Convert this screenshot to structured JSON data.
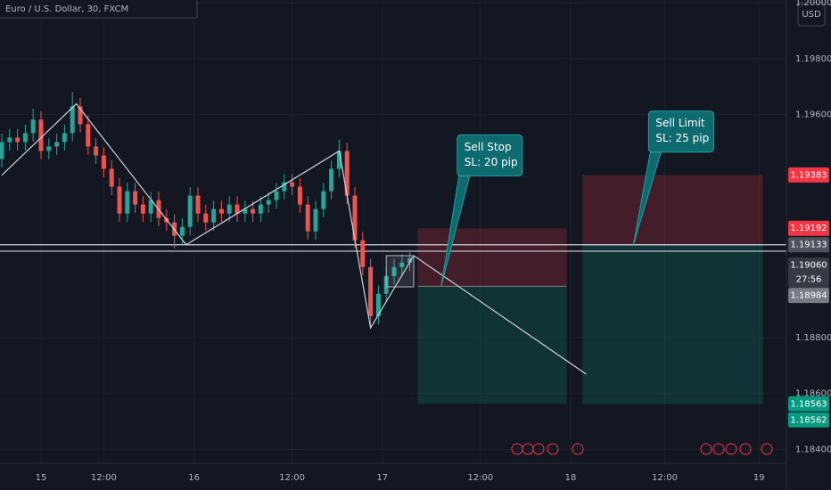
{
  "chart_data": {
    "type": "candlestick",
    "title": "Euro / U.S. Dollar, 30, FXCM",
    "currency": "USD",
    "up_color": "#26a69a",
    "down_color": "#ef5350",
    "grid": true,
    "x": [
      0,
      2,
      4,
      6,
      8,
      10,
      12,
      14,
      16,
      18,
      20,
      22,
      24,
      26,
      28,
      30,
      32,
      34,
      36,
      38,
      40,
      42,
      44,
      46,
      48,
      50,
      52,
      54,
      56,
      58,
      60,
      62,
      64,
      66,
      68,
      70,
      72,
      74,
      76,
      78,
      80,
      82,
      84,
      86,
      88,
      90,
      92,
      94,
      96,
      98,
      100,
      102,
      104
    ],
    "open": [
      1.1944,
      1.19501,
      1.19517,
      1.19501,
      1.19533,
      1.19581,
      1.19469,
      1.19485,
      1.19501,
      1.19533,
      1.19629,
      1.19565,
      1.19485,
      1.19453,
      1.19405,
      1.19341,
      1.19245,
      1.19325,
      1.19277,
      1.19245,
      1.19293,
      1.19229,
      1.19213,
      1.19165,
      1.19197,
      1.19309,
      1.19245,
      1.19213,
      1.19261,
      1.19245,
      1.19277,
      1.19245,
      1.19261,
      1.19245,
      1.19277,
      1.19293,
      1.19325,
      1.19357,
      1.19341,
      1.19277,
      1.19181,
      1.19261,
      1.19325,
      1.19405,
      1.19469,
      1.19309,
      1.19149,
      1.19053,
      1.18877,
      1.18957,
      1.19021,
      1.19053,
      1.19069
    ],
    "high": [
      1.19531,
      1.19547,
      1.19547,
      1.19563,
      1.1962,
      1.19611,
      1.19515,
      1.19531,
      1.19563,
      1.1968,
      1.19659,
      1.19595,
      1.19515,
      1.19483,
      1.19435,
      1.19371,
      1.19355,
      1.19355,
      1.19307,
      1.19323,
      1.19323,
      1.19259,
      1.19243,
      1.19227,
      1.19339,
      1.19339,
      1.19275,
      1.19291,
      1.19291,
      1.19307,
      1.19307,
      1.19291,
      1.19291,
      1.19307,
      1.19323,
      1.19355,
      1.19387,
      1.19387,
      1.19371,
      1.19307,
      1.19291,
      1.19355,
      1.19435,
      1.1951,
      1.19499,
      1.19339,
      1.19179,
      1.19083,
      1.18987,
      1.19051,
      1.19083,
      1.19099,
      1.19115
    ],
    "low": [
      1.1941,
      1.19471,
      1.19471,
      1.19471,
      1.19503,
      1.19439,
      1.19439,
      1.19455,
      1.19471,
      1.19503,
      1.19535,
      1.19455,
      1.19423,
      1.19375,
      1.19311,
      1.19215,
      1.19215,
      1.19247,
      1.19215,
      1.19215,
      1.19199,
      1.19183,
      1.1912,
      1.19135,
      1.19167,
      1.19215,
      1.19183,
      1.19183,
      1.19215,
      1.19215,
      1.19215,
      1.19215,
      1.19215,
      1.19215,
      1.19247,
      1.19263,
      1.19295,
      1.19311,
      1.19247,
      1.19151,
      1.19151,
      1.19231,
      1.19295,
      1.19375,
      1.19279,
      1.19119,
      1.19023,
      1.1884,
      1.18847,
      1.18927,
      1.18991,
      1.19023,
      1.19039
    ],
    "close": [
      1.19501,
      1.19517,
      1.19501,
      1.19533,
      1.19581,
      1.19469,
      1.19485,
      1.19501,
      1.19533,
      1.19629,
      1.19565,
      1.19485,
      1.19453,
      1.19405,
      1.19341,
      1.19245,
      1.19325,
      1.19277,
      1.19245,
      1.19293,
      1.19229,
      1.19213,
      1.19165,
      1.19197,
      1.19309,
      1.19245,
      1.19213,
      1.19261,
      1.19245,
      1.19277,
      1.19245,
      1.19261,
      1.19245,
      1.19277,
      1.19293,
      1.19325,
      1.19357,
      1.19341,
      1.19277,
      1.19181,
      1.19261,
      1.19325,
      1.19405,
      1.19469,
      1.19309,
      1.19149,
      1.19053,
      1.18877,
      1.18957,
      1.19021,
      1.19053,
      1.19069,
      1.19085
    ],
    "xlim": [
      0,
      200
    ],
    "xticks": [
      {
        "value": 10,
        "label": "15"
      },
      {
        "value": 26,
        "label": "12:00"
      },
      {
        "value": 49,
        "label": "16"
      },
      {
        "value": 74,
        "label": "12:00"
      },
      {
        "value": 97,
        "label": "17"
      },
      {
        "value": 122,
        "label": "12:00"
      },
      {
        "value": 145,
        "label": "18"
      },
      {
        "value": 169,
        "label": "12:00"
      },
      {
        "value": 193,
        "label": "19"
      }
    ],
    "ylim": [
      1.1835,
      1.2001
    ],
    "yticks": [
      {
        "value": 1.184,
        "label": "1.18400"
      },
      {
        "value": 1.186,
        "label": "1.18600"
      },
      {
        "value": 1.188,
        "label": "1.18800"
      },
      {
        "value": 1.196,
        "label": "1.19600"
      },
      {
        "value": 1.198,
        "label": "1.19800"
      },
      {
        "value": 1.2,
        "label": "1.20000"
      }
    ],
    "horizontal_lines": [
      1.19133,
      1.1911
    ],
    "zigzag": {
      "x": [
        0,
        19,
        47,
        86,
        94,
        105
      ],
      "values": [
        1.19382,
        1.19638,
        1.19133,
        1.19469,
        1.18835,
        1.19094
      ]
    },
    "projection": {
      "x": [
        105,
        149
      ],
      "values": [
        1.19094,
        1.18669
      ]
    },
    "range_box": {
      "x": [
        98,
        105
      ],
      "values": [
        1.18982,
        1.19094
      ]
    },
    "positions": [
      {
        "x": [
          106,
          144
        ],
        "entry": 1.18984,
        "stop": 1.19192,
        "target": 1.18563
      },
      {
        "x": [
          148,
          194
        ],
        "entry": 1.19133,
        "stop": 1.19383,
        "target": 1.18562
      }
    ],
    "callouts": [
      {
        "lines": [
          "Sell Stop",
          "SL: 20 pip"
        ],
        "x": 112,
        "price": 1.18984
      },
      {
        "lines": [
          "Sell Limit",
          "SL: 25 pip"
        ],
        "x": 161,
        "price": 1.19133
      }
    ],
    "price_labels": [
      {
        "value": 1.19383,
        "label": "1.19383",
        "color": "#f23645"
      },
      {
        "value": 1.19192,
        "label": "1.19192",
        "color": "#f23645"
      },
      {
        "value": 1.19133,
        "label": "1.19133",
        "color": "#50535e"
      },
      {
        "value": 1.1906,
        "label": "1.19060",
        "color": "#363a45",
        "countdown": "27:56"
      },
      {
        "value": 1.18984,
        "label": "1.18984",
        "color": "#787b86"
      },
      {
        "value": 1.18563,
        "label": "1.18563",
        "color": "#089981"
      },
      {
        "value": 1.18562,
        "label": "1.18562",
        "color": "#089981"
      }
    ]
  }
}
